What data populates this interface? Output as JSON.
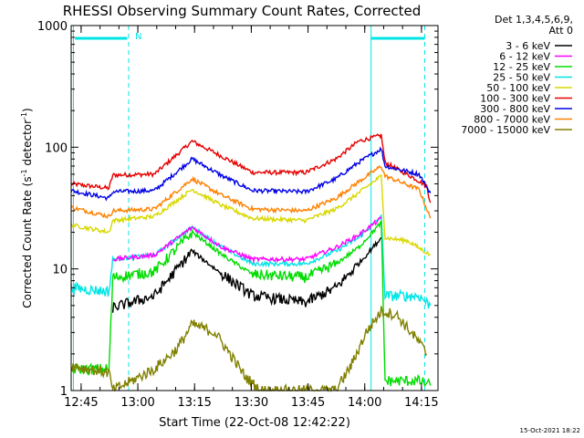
{
  "chart_data": {
    "type": "line",
    "title": "RHESSI Observing Summary Count Rates, Corrected",
    "xlabel": "Start Time (22-Oct-08 12:42:22)",
    "ylabel_main": "Corrected Count Rate (s",
    "ylabel_sup1": "-1",
    "ylabel_mid": " detector",
    "ylabel_sup2": "-1",
    "ylabel_end": ")",
    "y_scale": "log",
    "ylim": [
      1,
      1000
    ],
    "y_ticks": [
      {
        "value": 1,
        "label": "1"
      },
      {
        "value": 10,
        "label": "10"
      },
      {
        "value": 100,
        "label": "100"
      },
      {
        "value": 1000,
        "label": "1000"
      }
    ],
    "x_range_minutes": [
      0,
      97
    ],
    "x_ticks": [
      {
        "minute": 2.63,
        "label": "12:45"
      },
      {
        "minute": 17.63,
        "label": "13:00"
      },
      {
        "minute": 32.63,
        "label": "13:15"
      },
      {
        "minute": 47.63,
        "label": "13:30"
      },
      {
        "minute": 62.63,
        "label": "13:45"
      },
      {
        "minute": 77.63,
        "label": "14:00"
      },
      {
        "minute": 92.63,
        "label": "14:15"
      }
    ],
    "legend": {
      "placement": "right",
      "header_line1": "Det 1,3,4,5,6,9,",
      "header_line2": "Att 0",
      "entries": [
        {
          "label": "3 - 6 keV",
          "color": "#000000"
        },
        {
          "label": "6 - 12 keV",
          "color": "#ff00ff"
        },
        {
          "label": "12 - 25 keV",
          "color": "#00dd00"
        },
        {
          "label": "25 - 50 keV",
          "color": "#00e5e5"
        },
        {
          "label": "50 - 100 keV",
          "color": "#d8d800"
        },
        {
          "label": "100 - 300 keV",
          "color": "#e60000"
        },
        {
          "label": "300 - 800 keV",
          "color": "#0000e6"
        },
        {
          "label": "800 - 7000 keV",
          "color": "#ff8000"
        },
        {
          "label": "7000 - 15000 keV",
          "color": "#808000"
        }
      ]
    },
    "night_marker": "N",
    "night_color": "#00e5e5",
    "series": [
      {
        "color": "#e60000",
        "points": [
          [
            0,
            50
          ],
          [
            10,
            46
          ],
          [
            11,
            59
          ],
          [
            22,
            60
          ],
          [
            32,
            112
          ],
          [
            38,
            90
          ],
          [
            48,
            62
          ],
          [
            62,
            62
          ],
          [
            70,
            80
          ],
          [
            76,
            112
          ],
          [
            82,
            125
          ],
          [
            83,
            75
          ],
          [
            91,
            55
          ],
          [
            94,
            48
          ],
          [
            95,
            35
          ]
        ]
      },
      {
        "color": "#0000e6",
        "points": [
          [
            0,
            44
          ],
          [
            10,
            38
          ],
          [
            11,
            43
          ],
          [
            22,
            44
          ],
          [
            32,
            80
          ],
          [
            40,
            58
          ],
          [
            48,
            44
          ],
          [
            62,
            43
          ],
          [
            70,
            55
          ],
          [
            76,
            75
          ],
          [
            82,
            97
          ],
          [
            83,
            70
          ],
          [
            92,
            60
          ],
          [
            95,
            42
          ]
        ]
      },
      {
        "color": "#ff8000",
        "points": [
          [
            0,
            32
          ],
          [
            10,
            27
          ],
          [
            11,
            30
          ],
          [
            22,
            31
          ],
          [
            32,
            55
          ],
          [
            40,
            40
          ],
          [
            48,
            31
          ],
          [
            62,
            30
          ],
          [
            70,
            38
          ],
          [
            76,
            52
          ],
          [
            82,
            70
          ],
          [
            83,
            58
          ],
          [
            92,
            45
          ],
          [
            95,
            26
          ]
        ]
      },
      {
        "color": "#d8d800",
        "points": [
          [
            0,
            23
          ],
          [
            10,
            20
          ],
          [
            11,
            25
          ],
          [
            22,
            27
          ],
          [
            32,
            45
          ],
          [
            40,
            33
          ],
          [
            48,
            26
          ],
          [
            62,
            25
          ],
          [
            70,
            31
          ],
          [
            76,
            42
          ],
          [
            82,
            58
          ],
          [
            83,
            18
          ],
          [
            89,
            17
          ],
          [
            95,
            13
          ]
        ]
      },
      {
        "color": "#00e5e5",
        "points": [
          [
            0,
            7
          ],
          [
            10,
            6.5
          ],
          [
            11,
            12
          ],
          [
            22,
            13
          ],
          [
            32,
            22
          ],
          [
            40,
            15
          ],
          [
            48,
            11
          ],
          [
            62,
            11
          ],
          [
            70,
            14
          ],
          [
            76,
            18
          ],
          [
            82,
            27
          ],
          [
            83,
            6
          ],
          [
            92,
            6
          ],
          [
            95,
            5
          ]
        ]
      },
      {
        "color": "#ff00ff",
        "points": [
          [
            11,
            12
          ],
          [
            22,
            13
          ],
          [
            32,
            22
          ],
          [
            40,
            15
          ],
          [
            48,
            12
          ],
          [
            62,
            12
          ],
          [
            70,
            15
          ],
          [
            76,
            19
          ],
          [
            82,
            26
          ]
        ]
      },
      {
        "color": "#00dd00",
        "points": [
          [
            0,
            1.5
          ],
          [
            10,
            1.5
          ],
          [
            11,
            8.5
          ],
          [
            22,
            9.5
          ],
          [
            32,
            20
          ],
          [
            40,
            13
          ],
          [
            48,
            9
          ],
          [
            62,
            8.5
          ],
          [
            70,
            11
          ],
          [
            76,
            15
          ],
          [
            82,
            24
          ],
          [
            83,
            1.2
          ],
          [
            92,
            1.2
          ],
          [
            95,
            1.1
          ]
        ]
      },
      {
        "color": "#000000",
        "points": [
          [
            11,
            4.8
          ],
          [
            22,
            6
          ],
          [
            32,
            14
          ],
          [
            40,
            9
          ],
          [
            48,
            6
          ],
          [
            62,
            5.3
          ],
          [
            70,
            7
          ],
          [
            76,
            11
          ],
          [
            82,
            18
          ]
        ]
      },
      {
        "color": "#808000",
        "points": [
          [
            0,
            1.6
          ],
          [
            10,
            1.4
          ],
          [
            11,
            1
          ],
          [
            22,
            1.5
          ],
          [
            28,
            2.2
          ],
          [
            32,
            3.5
          ],
          [
            38,
            3
          ],
          [
            42,
            2
          ],
          [
            46,
            1.3
          ],
          [
            50,
            1
          ],
          [
            70,
            1
          ],
          [
            74,
            1.6
          ],
          [
            78,
            3
          ],
          [
            82,
            4.5
          ],
          [
            86,
            4.2
          ],
          [
            92,
            2.5
          ],
          [
            94,
            2
          ]
        ]
      }
    ],
    "night_bars": [
      [
        1,
        14.8
      ],
      [
        79.3,
        93.5
      ]
    ],
    "night_dashes": [
      15.2,
      93.5
    ],
    "night_solids": [
      0.6,
      79.3
    ]
  },
  "footer": {
    "timestamp": "15-Oct-2021 18:22"
  }
}
